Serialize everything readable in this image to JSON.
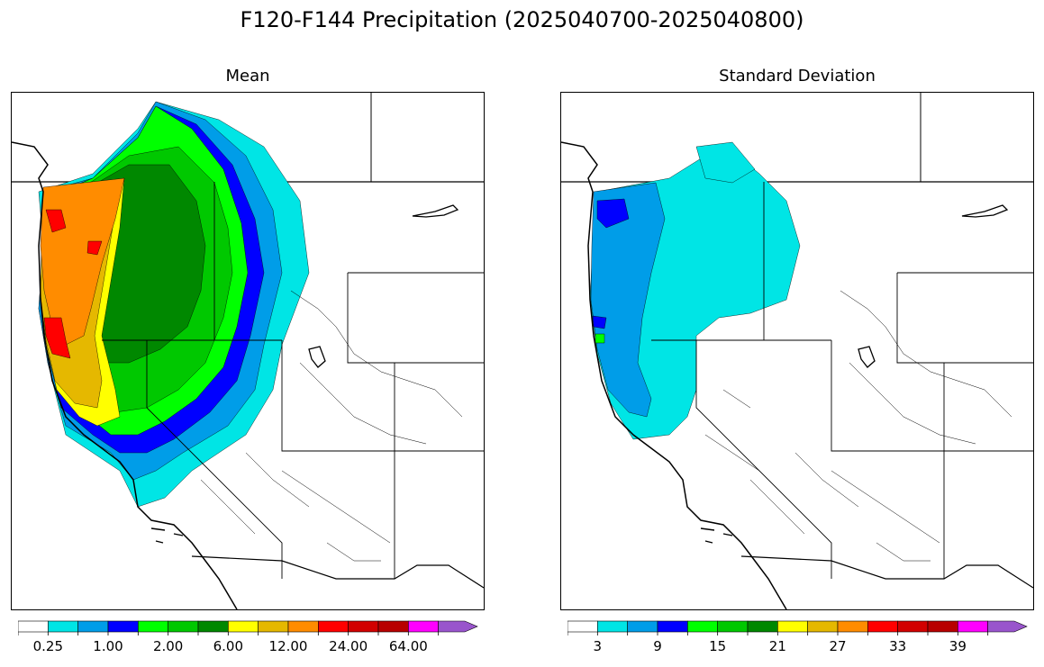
{
  "figure": {
    "title": "F120-F144 Precipitation (2025040700-2025040800)"
  },
  "panels": [
    {
      "title": "Mean"
    },
    {
      "title": "Standard Deviation"
    }
  ],
  "colors": {
    "mean_scale": [
      "#ffffff",
      "#00e5e5",
      "#009de8",
      "#0000ff",
      "#00ff00",
      "#00c800",
      "#008800",
      "#ffff00",
      "#e5b800",
      "#ff8c00",
      "#ff0000",
      "#d20000",
      "#b80000",
      "#ff00ff",
      "#9955cc"
    ],
    "std_scale": [
      "#ffffff",
      "#00e5e5",
      "#009de8",
      "#0000ff",
      "#00ff00",
      "#00c800",
      "#008800",
      "#ffff00",
      "#e5b800",
      "#ff8c00",
      "#ff0000",
      "#d20000",
      "#b80000",
      "#ff00ff",
      "#9955cc"
    ]
  },
  "colorbars": {
    "mean": {
      "labels": [
        "0.25",
        "1.00",
        "2.00",
        "6.00",
        "12.00",
        "24.00",
        "64.00"
      ]
    },
    "std": {
      "labels": [
        "3",
        "9",
        "15",
        "21",
        "27",
        "33",
        "39"
      ]
    }
  }
}
